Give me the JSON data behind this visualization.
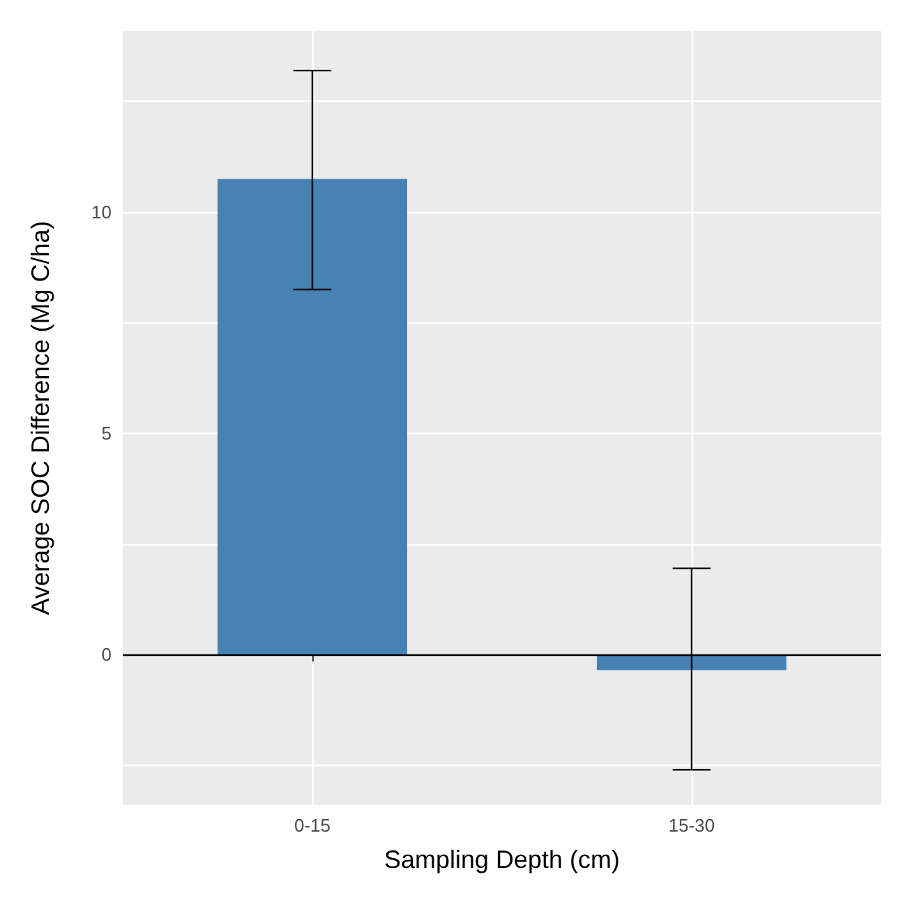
{
  "chart_data": {
    "type": "bar",
    "xlabel": "Sampling Depth (cm)",
    "ylabel": "Average SOC Difference (Mg C/ha)",
    "categories": [
      "0-15",
      "15-30"
    ],
    "values": [
      10.75,
      -0.35
    ],
    "errors": [
      [
        8.25,
        13.2
      ],
      [
        -2.6,
        1.95
      ]
    ],
    "color": "#4682b4",
    "ylim": [
      -3.4,
      14.1
    ],
    "yticks": [
      {
        "value": -2.5,
        "label": null
      },
      0,
      {
        "value": 2.5,
        "label": null
      },
      5,
      {
        "value": 7.5,
        "label": null
      },
      10,
      {
        "value": 12.5,
        "label": null
      }
    ],
    "ref_lines": [
      {
        "axis": "y",
        "value": 0,
        "color": "#000000"
      }
    ],
    "grid": true
  }
}
